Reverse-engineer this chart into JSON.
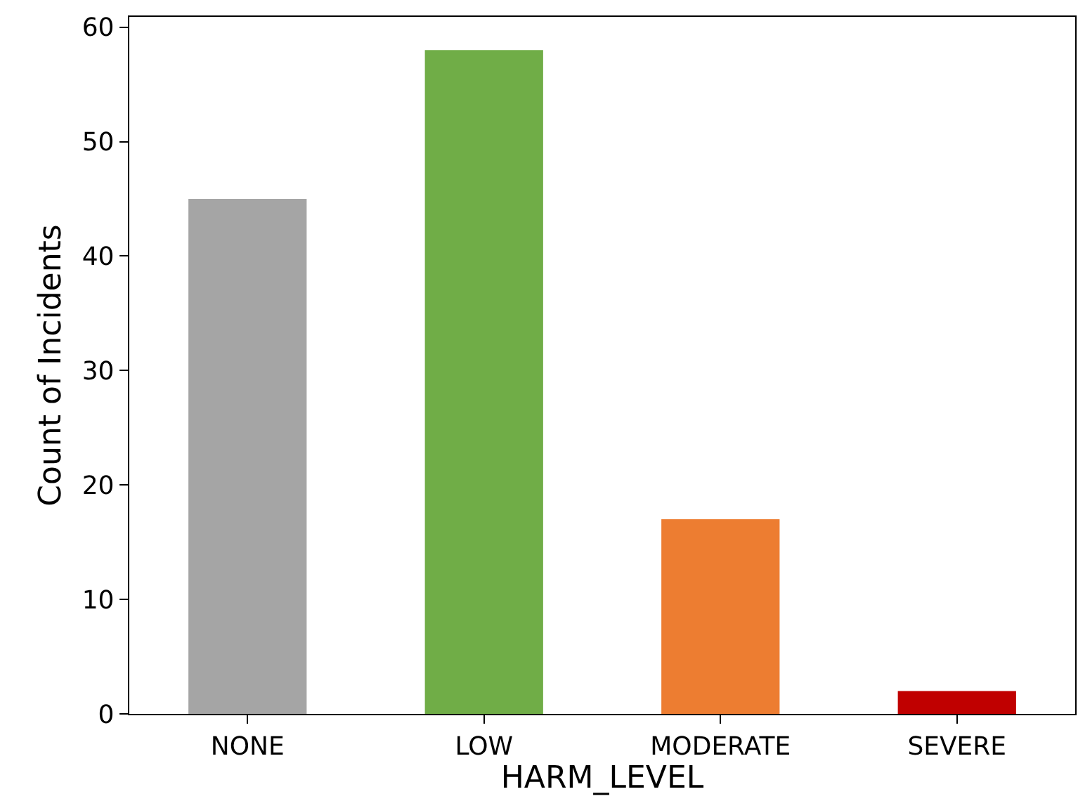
{
  "chart_data": {
    "type": "bar",
    "xlabel": "HARM_LEVEL",
    "ylabel": "Count of Incidents",
    "categories": [
      "NONE",
      "LOW",
      "MODERATE",
      "SEVERE"
    ],
    "values": [
      45,
      58,
      17,
      2
    ],
    "colors": [
      "#a5a5a5",
      "#70ad47",
      "#ed7d31",
      "#c00000"
    ],
    "ylim": [
      0,
      60.9
    ],
    "yticks": [
      0,
      10,
      20,
      30,
      40,
      50,
      60
    ]
  }
}
